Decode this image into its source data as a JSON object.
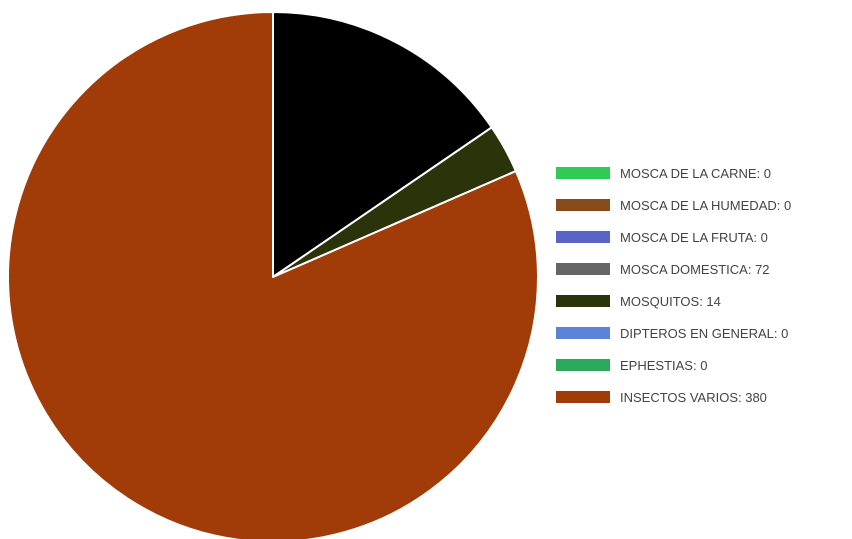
{
  "chart_data": {
    "type": "pie",
    "legend_position": "right",
    "series": [
      {
        "label": "MOSCA DE LA CARNE: 0",
        "value": 0,
        "color": "#2ecc55"
      },
      {
        "label": "MOSCA DE LA HUMEDAD: 0",
        "value": 0,
        "color": "#8a4b1c"
      },
      {
        "label": "MOSCA DE LA FRUTA: 0",
        "value": 0,
        "color": "#5a64c8"
      },
      {
        "label": "MOSCA DOMESTICA: 72",
        "value": 72,
        "color": "#000000"
      },
      {
        "label": "MOSQUITOS: 14",
        "value": 14,
        "color": "#2b330a"
      },
      {
        "label": "DIPTEROS EN GENERAL: 0",
        "value": 0,
        "color": "#5b84d8"
      },
      {
        "label": "EPHESTIAS: 0",
        "value": 0,
        "color": "#2aaa5a"
      },
      {
        "label": "INSECTOS VARIOS: 380",
        "value": 380,
        "color": "#a13c09"
      }
    ],
    "legend_swatch_colors": {
      "MOSCA DOMESTICA": "#666666"
    }
  }
}
